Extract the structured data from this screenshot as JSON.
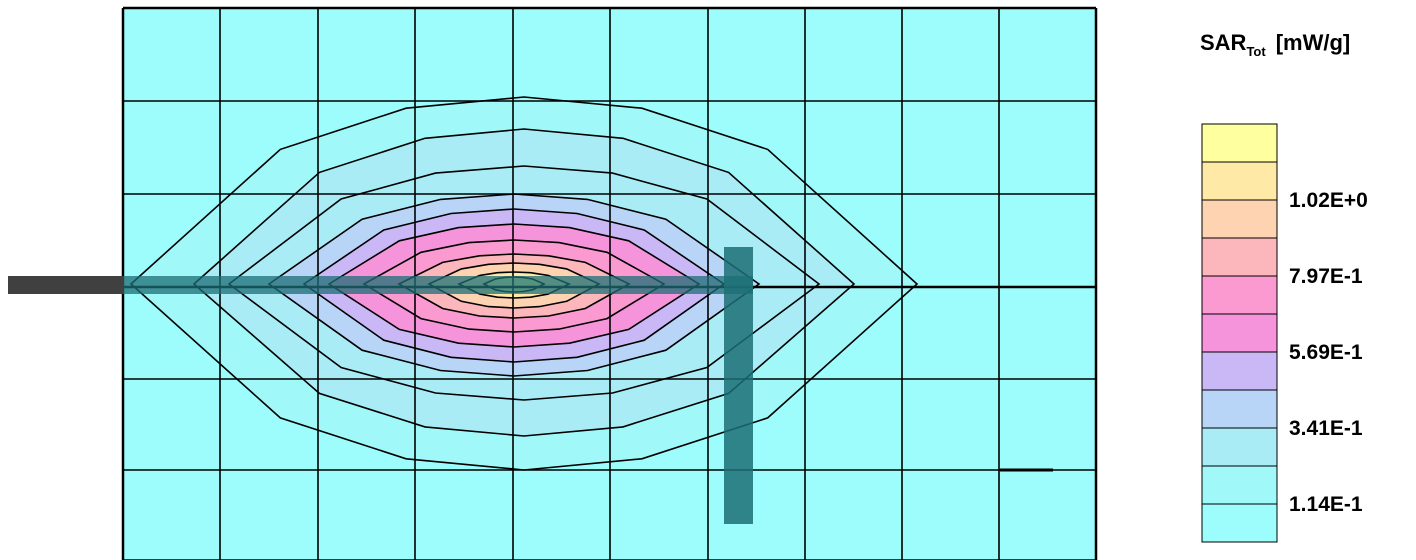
{
  "chart_data": {
    "type": "heatmap",
    "legend": {
      "title_main": "SAR",
      "title_sub": "Tot",
      "unit": "[mW/g]",
      "placement": "right",
      "tick_labels": [
        "1.02E+0",
        "7.97E-1",
        "5.69E-1",
        "3.41E-1",
        "1.14E-1"
      ],
      "colors": [
        "#feff9f",
        "#fee9a6",
        "#fed3b1",
        "#fbb7bc",
        "#fa9ad0",
        "#f594db",
        "#c9b8f5",
        "#b8d4f7",
        "#a9ecf6",
        "#a0f8f8",
        "#9dfcfc"
      ]
    },
    "grid": true,
    "contour_levels": 11,
    "background_color": "#9dfcfc",
    "contour_line_color": "#000000",
    "antenna_color": "#1c6e75"
  }
}
